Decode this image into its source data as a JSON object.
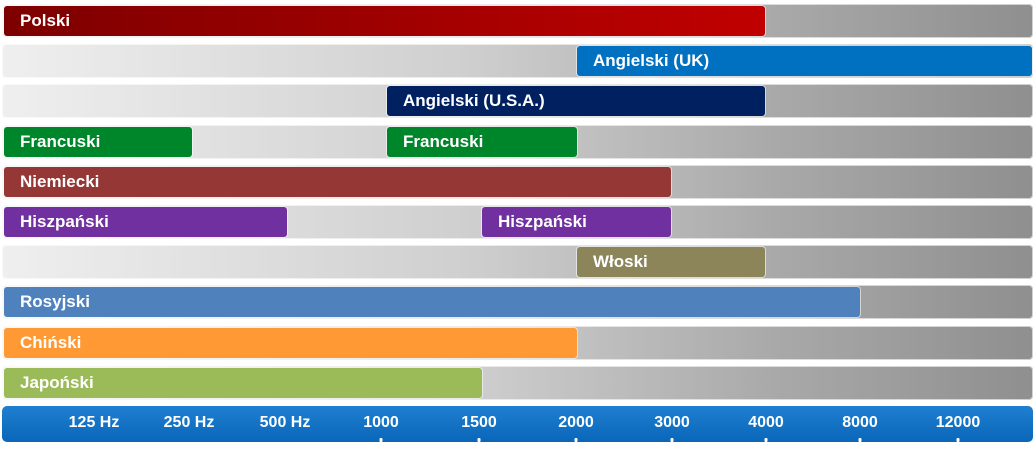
{
  "chart_data": {
    "type": "bar",
    "subtype": "range-bars",
    "x_categories": [
      "125 Hz",
      "250 Hz",
      "500 Hz",
      "1000",
      "1500",
      "2000",
      "3000",
      "4000",
      "8000",
      "12000"
    ],
    "rows": [
      {
        "label": "Polski",
        "color": "#c00000",
        "segments": [
          [
            null,
            "4000"
          ]
        ]
      },
      {
        "label": "Angielski (UK)",
        "color": "#0070c0",
        "segments": [
          [
            "2000",
            null
          ]
        ]
      },
      {
        "label": "Angielski (U.S.A.)",
        "color": "#002060",
        "segments": [
          [
            "1000",
            "4000"
          ]
        ]
      },
      {
        "label": "Francuski",
        "color": "#00862a",
        "segments": [
          [
            null,
            "250 Hz"
          ],
          [
            "1000",
            "2000"
          ]
        ]
      },
      {
        "label": "Niemiecki",
        "color": "#953735",
        "segments": [
          [
            null,
            "3000"
          ]
        ]
      },
      {
        "label": "Hiszpański",
        "color": "#7030a0",
        "segments": [
          [
            null,
            "500 Hz"
          ],
          [
            "1500",
            "3000"
          ]
        ]
      },
      {
        "label": "Włoski",
        "color": "#8c8559",
        "segments": [
          [
            "2000",
            "4000"
          ]
        ]
      },
      {
        "label": "Rosyjski",
        "color": "#4f81bd",
        "segments": [
          [
            null,
            "8000"
          ]
        ]
      },
      {
        "label": "Chiński",
        "color": "#ff9933",
        "segments": [
          [
            null,
            "2000"
          ]
        ]
      },
      {
        "label": "Japoński",
        "color": "#9bbb59",
        "segments": [
          [
            null,
            "1500"
          ]
        ]
      }
    ],
    "axis_color": "#0a66b8",
    "track_color": "gradient light-to-dark gray"
  }
}
